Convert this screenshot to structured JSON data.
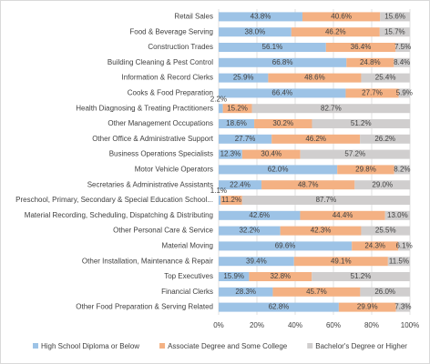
{
  "chart_data": {
    "type": "stacked-bar-horizontal",
    "categories": [
      "Retail Sales",
      "Food & Beverage Serving",
      "Construction Trades",
      "Building Cleaning & Pest Control",
      "Information & Record Clerks",
      "Cooks & Food Preparation",
      "Health Diagnosing & Treating Practitioners",
      "Other Management Occupations",
      "Other Office & Administrative Support",
      "Business Operations Specialists",
      "Motor Vehicle Operators",
      "Secretaries & Administrative Assistants",
      "Preschool, Primary, Secondary & Special Education School...",
      "Material Recording, Scheduling, Dispatching & Distributing",
      "Other Personal Care & Service",
      "Material Moving",
      "Other Installation, Maintenance & Repair",
      "Top Executives",
      "Financial Clerks",
      "Other Food Preparation & Serving Related"
    ],
    "series": [
      {
        "name": "High School Diploma or Below",
        "color": "#9dc3e6",
        "values": [
          43.8,
          38.0,
          56.1,
          66.8,
          25.9,
          66.4,
          2.2,
          18.6,
          27.7,
          12.3,
          62.0,
          22.4,
          1.1,
          42.6,
          32.2,
          69.6,
          39.4,
          15.9,
          28.3,
          62.8
        ],
        "value_labels": [
          "43.8%",
          "38.0%",
          "56.1%",
          "66.8%",
          "25.9%",
          "66.4%",
          "2.2%",
          "18.6%",
          "27.7%",
          "12.3%",
          "62.0%",
          "22.4%",
          "1.1%",
          "42.6%",
          "32.2%",
          "69.6%",
          "39.4%",
          "15.9%",
          "28.3%",
          "62.8%"
        ]
      },
      {
        "name": "Associate Degree and Some College",
        "color": "#f4b183",
        "values": [
          40.6,
          46.2,
          36.4,
          24.8,
          48.6,
          27.7,
          15.2,
          30.2,
          46.2,
          30.4,
          29.8,
          48.7,
          11.2,
          44.4,
          42.3,
          24.3,
          49.1,
          32.8,
          45.7,
          29.9
        ],
        "value_labels": [
          "40.6%",
          "46.2%",
          "36.4%",
          "24.8%",
          "48.6%",
          "27.7%",
          "15.2%",
          "30.2%",
          "46.2%",
          "30.4%",
          "29.8%",
          "48.7%",
          "11.2%",
          "44.4%",
          "42.3%",
          "24.3%",
          "49.1%",
          "32.8%",
          "45.7%",
          "29.9%"
        ]
      },
      {
        "name": "Bachelor's Degree or Higher",
        "color": "#d0cece",
        "values": [
          15.6,
          15.7,
          7.5,
          8.4,
          25.4,
          5.9,
          82.7,
          51.2,
          26.2,
          57.2,
          8.2,
          29.0,
          87.7,
          13.0,
          25.5,
          6.1,
          11.5,
          51.2,
          26.0,
          7.3
        ],
        "value_labels": [
          "15.6%",
          "15.7%",
          "7.5%",
          "8.4%",
          "25.4%",
          "5.9%",
          "82.7%",
          "51.2%",
          "26.2%",
          "57.2%",
          "8.2%",
          "29.0%",
          "87.7%",
          "13.0%",
          "25.5%",
          "6.1%",
          "11.5%",
          "51.2%",
          "26.0%",
          "7.3%"
        ]
      }
    ],
    "xlim": [
      0,
      100
    ],
    "xticks": [
      {
        "value": 0,
        "label": "0%"
      },
      {
        "value": 20,
        "label": "20%"
      },
      {
        "value": 40,
        "label": "40%"
      },
      {
        "value": 60,
        "label": "60%"
      },
      {
        "value": 80,
        "label": "80%"
      },
      {
        "value": 100,
        "label": "100%"
      }
    ],
    "grid": true,
    "legend": "bottom"
  }
}
